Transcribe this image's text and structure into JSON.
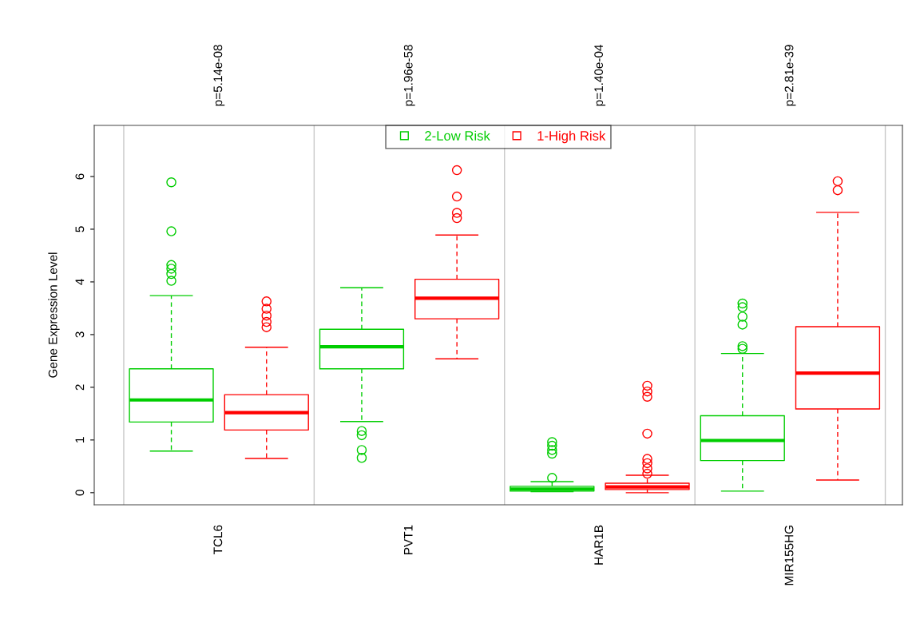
{
  "chart_data": {
    "type": "box",
    "ylabel": "Gene Expression Level",
    "categories": [
      "TCL6",
      "PVT1",
      "HAR1B",
      "MIR155HG"
    ],
    "ylim": [
      -0.23,
      6.97
    ],
    "yticks": [
      0,
      1,
      2,
      3,
      4,
      5,
      6
    ],
    "grid": "x",
    "legend": "top",
    "annotations": [
      "p=5.14e-08",
      "p=1.96e-58",
      "p=1.40e-04",
      "p=2.81e-39"
    ],
    "series": [
      {
        "name": "2-Low Risk",
        "color": "#00cd00",
        "boxes": [
          {
            "low": 0.79,
            "q1": 1.34,
            "median": 1.76,
            "q3": 2.35,
            "high": 3.74,
            "outliers": [
              5.89,
              4.96,
              4.32,
              4.25,
              4.15,
              4.02
            ]
          },
          {
            "low": 1.35,
            "q1": 2.35,
            "median": 2.77,
            "q3": 3.1,
            "high": 3.89,
            "outliers": [
              1.17,
              1.09,
              0.81,
              0.66
            ]
          },
          {
            "low": 0.02,
            "q1": 0.03,
            "median": 0.07,
            "q3": 0.12,
            "high": 0.21,
            "outliers": [
              0.28,
              0.96,
              0.89,
              0.81,
              0.74
            ]
          },
          {
            "low": 0.03,
            "q1": 0.61,
            "median": 0.99,
            "q3": 1.46,
            "high": 2.64,
            "outliers": [
              3.59,
              3.52,
              3.34,
              3.19,
              2.78,
              2.73
            ]
          }
        ]
      },
      {
        "name": "1-High Risk",
        "color": "#ff0000",
        "boxes": [
          {
            "low": 0.65,
            "q1": 1.19,
            "median": 1.52,
            "q3": 1.86,
            "high": 2.76,
            "outliers": [
              3.63,
              3.49,
              3.36,
              3.24,
              3.14
            ]
          },
          {
            "low": 2.54,
            "q1": 3.3,
            "median": 3.69,
            "q3": 4.05,
            "high": 4.89,
            "outliers": [
              6.12,
              5.62,
              5.31,
              5.21
            ]
          },
          {
            "low": 0.0,
            "q1": 0.06,
            "median": 0.11,
            "q3": 0.18,
            "high": 0.33,
            "outliers": [
              2.03,
              1.92,
              1.82,
              1.12,
              0.64,
              0.56,
              0.46,
              0.36
            ]
          },
          {
            "low": 0.24,
            "q1": 1.59,
            "median": 2.27,
            "q3": 3.15,
            "high": 5.32,
            "outliers": [
              5.91,
              5.74
            ]
          }
        ]
      }
    ]
  }
}
